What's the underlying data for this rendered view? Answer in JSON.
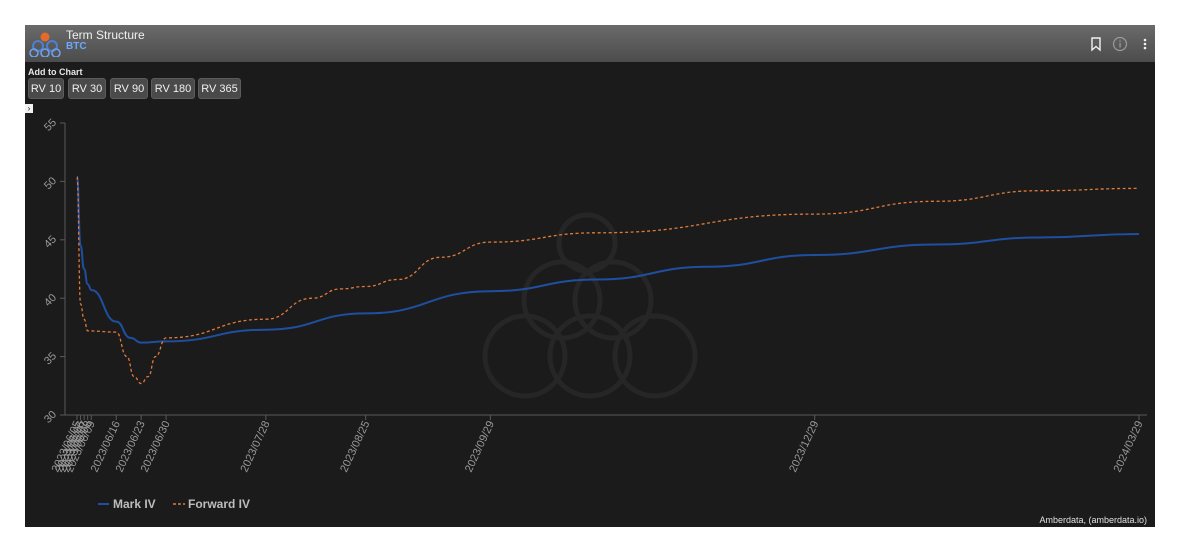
{
  "header": {
    "title": "Term Structure",
    "subtitle": "BTC"
  },
  "toolbar": {
    "add_label": "Add to Chart",
    "buttons": [
      "RV 10",
      "RV 30",
      "RV 90",
      "RV 180",
      "RV 365"
    ]
  },
  "footer": {
    "credit": "Amberdata, (amberdata.io)"
  },
  "colors": {
    "mark_iv": "#1f4fa0",
    "forward_iv": "#e07a3a",
    "panel_bg": "#1b1b1b",
    "axis": "#5a5a5a"
  },
  "chart_data": {
    "type": "line",
    "title": "",
    "xlabel": "",
    "ylabel": "",
    "ylim": [
      30,
      55
    ],
    "yticks": [
      30,
      35,
      40,
      45,
      50,
      55
    ],
    "xlim": [
      "2023-06-05",
      "2024-03-29"
    ],
    "x_ticks": [
      {
        "date": "2023-06-05",
        "label": "2023/06/05"
      },
      {
        "date": "2023-06-06",
        "label": "2023/06/06"
      },
      {
        "date": "2023-06-07",
        "label": "2023/06/07"
      },
      {
        "date": "2023-06-08",
        "label": "2023/06/08"
      },
      {
        "date": "2023-06-09",
        "label": "2023/06/09"
      },
      {
        "date": "2023-06-16",
        "label": "2023/06/16"
      },
      {
        "date": "2023-06-23",
        "label": "2023/06/23"
      },
      {
        "date": "2023-06-30",
        "label": "2023/06/30"
      },
      {
        "date": "2023-07-28",
        "label": "2023/07/28"
      },
      {
        "date": "2023-08-25",
        "label": "2023/08/25"
      },
      {
        "date": "2023-09-29",
        "label": "2023/09/29"
      },
      {
        "date": "2023-12-29",
        "label": "2023/12/29"
      },
      {
        "date": "2024-03-29",
        "label": "2024/03/29"
      }
    ],
    "legend_position": "bottom-left",
    "grid": false,
    "series": [
      {
        "name": "Mark IV",
        "style": "solid",
        "points": [
          [
            "2023-06-05",
            50.4
          ],
          [
            "2023-06-06",
            44.5
          ],
          [
            "2023-06-07",
            42.5
          ],
          [
            "2023-06-08",
            41.2
          ],
          [
            "2023-06-09",
            40.7
          ],
          [
            "2023-06-16",
            38.0
          ],
          [
            "2023-06-20",
            36.6
          ],
          [
            "2023-06-23",
            36.2
          ],
          [
            "2023-06-30",
            36.3
          ],
          [
            "2023-07-28",
            37.3
          ],
          [
            "2023-08-25",
            38.7
          ],
          [
            "2023-09-29",
            40.6
          ],
          [
            "2023-10-29",
            41.6
          ],
          [
            "2023-11-29",
            42.7
          ],
          [
            "2023-12-29",
            43.7
          ],
          [
            "2024-02-01",
            44.6
          ],
          [
            "2024-03-01",
            45.2
          ],
          [
            "2024-03-29",
            45.5
          ]
        ]
      },
      {
        "name": "Forward IV",
        "style": "dashed",
        "points": [
          [
            "2023-06-05",
            50.4
          ],
          [
            "2023-06-06",
            39.5
          ],
          [
            "2023-06-07",
            38.2
          ],
          [
            "2023-06-08",
            37.2
          ],
          [
            "2023-06-16",
            37.1
          ],
          [
            "2023-06-19",
            35.0
          ],
          [
            "2023-06-21",
            33.3
          ],
          [
            "2023-06-23",
            32.7
          ],
          [
            "2023-06-25",
            33.3
          ],
          [
            "2023-06-27",
            35.0
          ],
          [
            "2023-06-30",
            36.6
          ],
          [
            "2023-07-28",
            38.2
          ],
          [
            "2023-08-10",
            40.0
          ],
          [
            "2023-08-18",
            40.8
          ],
          [
            "2023-08-25",
            41.0
          ],
          [
            "2023-09-03",
            41.6
          ],
          [
            "2023-09-15",
            43.5
          ],
          [
            "2023-09-29",
            44.8
          ],
          [
            "2023-10-29",
            45.6
          ],
          [
            "2023-12-29",
            47.2
          ],
          [
            "2024-02-01",
            48.3
          ],
          [
            "2024-03-01",
            49.2
          ],
          [
            "2024-03-29",
            49.4
          ]
        ]
      }
    ]
  }
}
